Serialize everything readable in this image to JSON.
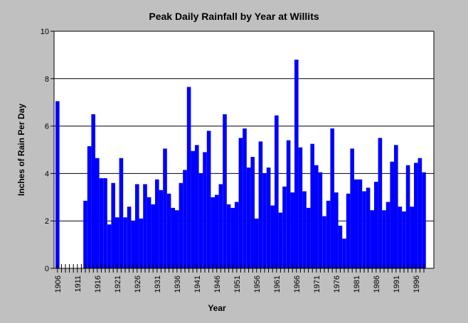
{
  "colors": {
    "background": "#c0c0c0",
    "plot_area": "#ffffff",
    "bar": "#0000ff",
    "gridline": "#000000"
  },
  "chart_data": {
    "type": "bar",
    "title": "Peak Daily Rainfall by Year at Willits",
    "xlabel": "Year",
    "ylabel": "Inches of Rain Per Day",
    "ylim": [
      0,
      10
    ],
    "y_ticks": [
      0,
      2,
      4,
      6,
      8,
      10
    ],
    "y_tick_labels": [
      "0",
      "2",
      "4",
      "6",
      "8",
      "10"
    ],
    "x_tick_labels": [
      "1906",
      "1911",
      "1916",
      "1921",
      "1926",
      "1931",
      "1936",
      "1941",
      "1946",
      "1951",
      "1956",
      "1961",
      "1966",
      "1971",
      "1976",
      "1981",
      "1986",
      "1991",
      "1996"
    ],
    "grid": "horizontal",
    "legend": "none",
    "categories": [
      1906,
      1907,
      1908,
      1909,
      1910,
      1911,
      1912,
      1913,
      1914,
      1915,
      1916,
      1917,
      1918,
      1919,
      1920,
      1921,
      1922,
      1923,
      1924,
      1925,
      1926,
      1927,
      1928,
      1929,
      1930,
      1931,
      1932,
      1933,
      1934,
      1935,
      1936,
      1937,
      1938,
      1939,
      1940,
      1941,
      1942,
      1943,
      1944,
      1945,
      1946,
      1947,
      1948,
      1949,
      1950,
      1951,
      1952,
      1953,
      1954,
      1955,
      1956,
      1957,
      1958,
      1959,
      1960,
      1961,
      1962,
      1963,
      1964,
      1965,
      1966,
      1967,
      1968,
      1969,
      1970,
      1971,
      1972,
      1973,
      1974,
      1975,
      1976,
      1977,
      1978,
      1979,
      1980,
      1981,
      1982,
      1983,
      1984,
      1985,
      1986,
      1987,
      1988,
      1989,
      1990,
      1991,
      1992,
      1993,
      1994,
      1995,
      1996,
      1997,
      1998
    ],
    "values": [
      7.05,
      null,
      null,
      null,
      null,
      null,
      null,
      2.85,
      5.15,
      6.5,
      4.65,
      3.8,
      3.8,
      1.85,
      3.6,
      2.15,
      4.65,
      2.15,
      2.6,
      2.0,
      3.55,
      2.1,
      3.55,
      3.0,
      2.7,
      3.75,
      3.3,
      5.05,
      3.15,
      2.55,
      2.45,
      3.6,
      4.15,
      7.65,
      4.95,
      5.2,
      4.0,
      4.9,
      5.8,
      3.0,
      3.1,
      3.55,
      6.5,
      2.7,
      2.55,
      2.8,
      5.5,
      5.9,
      4.25,
      4.7,
      2.1,
      5.35,
      4.0,
      4.25,
      2.65,
      6.45,
      2.35,
      3.45,
      5.4,
      3.2,
      8.8,
      5.1,
      3.25,
      2.55,
      5.25,
      4.35,
      4.05,
      2.2,
      2.85,
      5.9,
      3.2,
      1.8,
      1.25,
      3.15,
      5.05,
      3.75,
      3.75,
      3.25,
      3.4,
      2.45,
      3.65,
      5.5,
      2.45,
      2.8,
      4.5,
      5.2,
      2.6,
      2.4,
      4.35,
      2.6,
      4.45,
      4.65,
      4.05
    ]
  }
}
